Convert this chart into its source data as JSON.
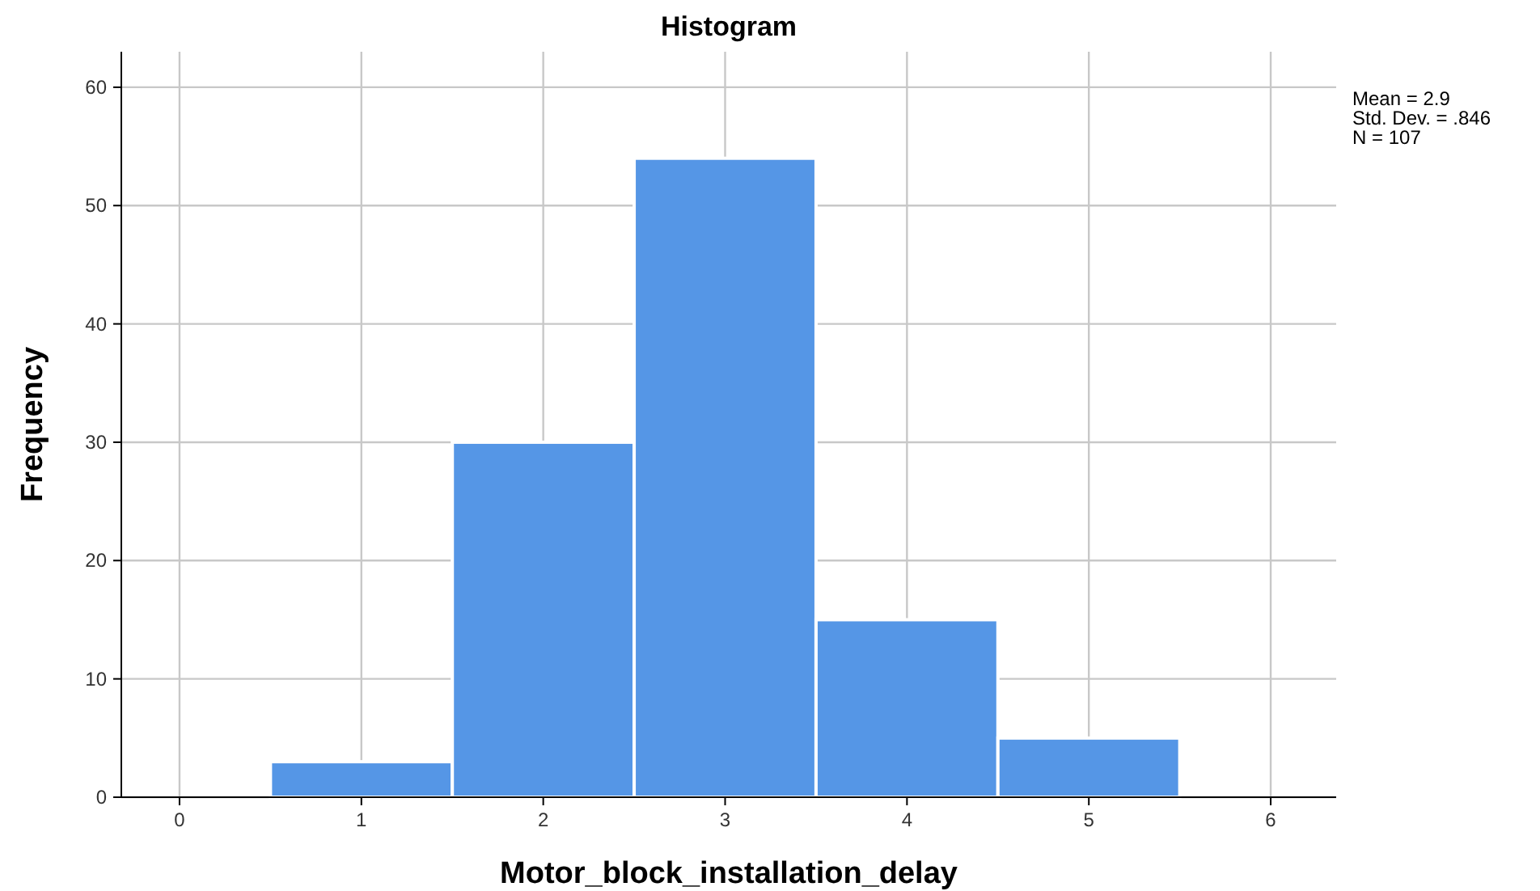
{
  "chart_data": {
    "type": "histogram",
    "title": "Histogram",
    "xlabel": "Motor_block_installation_delay",
    "ylabel": "Frequency",
    "bins": [
      0.5,
      1.5,
      2.5,
      3.5,
      4.5,
      5.5
    ],
    "values": [
      3,
      30,
      54,
      15,
      5
    ],
    "color": "#5596e6",
    "xlim": [
      -0.32,
      6.36
    ],
    "xticks": [
      0,
      1,
      2,
      3,
      4,
      5,
      6
    ],
    "ylim": [
      0,
      63
    ],
    "yticks": [
      0,
      10,
      20,
      30,
      40,
      50,
      60
    ],
    "grid": true,
    "annotations": [
      "Mean = 2.9\nStd. Dev. = .846\nN = 107"
    ]
  }
}
